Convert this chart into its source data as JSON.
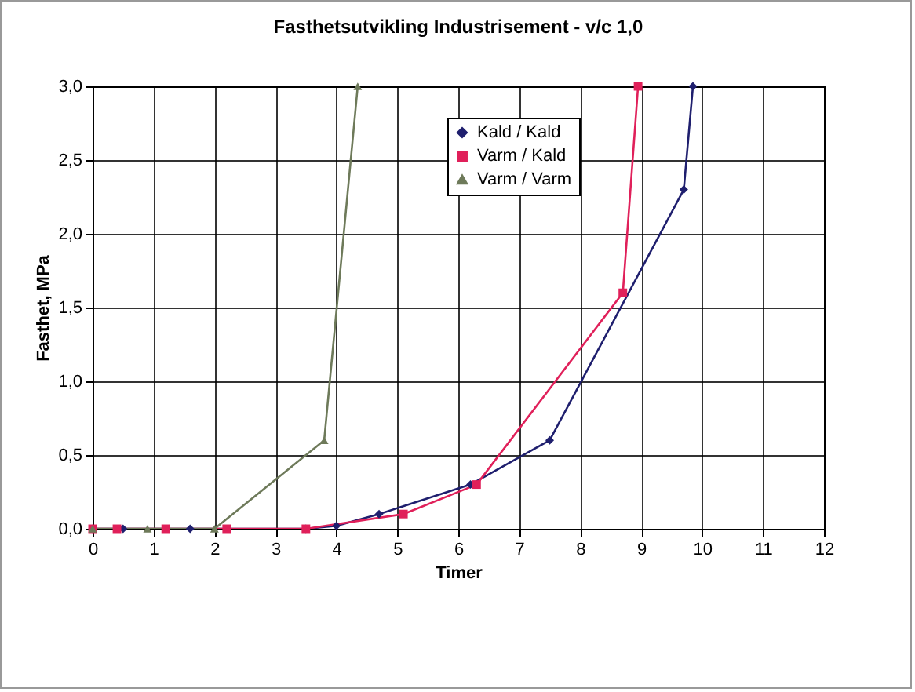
{
  "chart_data": {
    "type": "line",
    "title": "Fasthetsutvikling  Industrisement - v/c 1,0",
    "xlabel": "Timer",
    "ylabel": "Fasthet, MPa",
    "xlim": [
      0,
      12
    ],
    "xticks": [
      0,
      1,
      2,
      3,
      4,
      5,
      6,
      7,
      8,
      9,
      10,
      11,
      12
    ],
    "ylim": [
      0,
      3
    ],
    "yticks": [
      {
        "value": 0,
        "label": "0,0"
      },
      {
        "value": 0.5,
        "label": "0,5"
      },
      {
        "value": 1,
        "label": "1,0"
      },
      {
        "value": 1.5,
        "label": "1,5"
      },
      {
        "value": 2,
        "label": "2,0"
      },
      {
        "value": 2.5,
        "label": "2,5"
      },
      {
        "value": 3,
        "label": "3,0"
      }
    ],
    "grid": true,
    "legend": "top right",
    "line_style": "solid",
    "series": [
      {
        "name": "Kald / Kald",
        "color": "#1f1f6e",
        "marker": "diamond",
        "x": [
          0,
          0.5,
          1.6,
          3.5,
          4,
          4.7,
          6.2,
          7.5,
          9.7,
          9.85
        ],
        "values": [
          0,
          0,
          0,
          0,
          0.02,
          0.1,
          0.3,
          0.6,
          2.3,
          3.0
        ]
      },
      {
        "name": "Varm / Kald",
        "color": "#e0205a",
        "marker": "square",
        "x": [
          0,
          0.4,
          1.2,
          2.2,
          3.5,
          5.1,
          6.3,
          8.7,
          8.95
        ],
        "values": [
          0,
          0,
          0,
          0,
          0,
          0.1,
          0.3,
          1.6,
          3.0
        ]
      },
      {
        "name": "Varm / Varm",
        "color": "#6e7a5a",
        "marker": "triangle",
        "x": [
          0,
          0.9,
          2,
          3.8,
          4.35
        ],
        "values": [
          0,
          0,
          0,
          0.6,
          3.0
        ]
      }
    ]
  }
}
